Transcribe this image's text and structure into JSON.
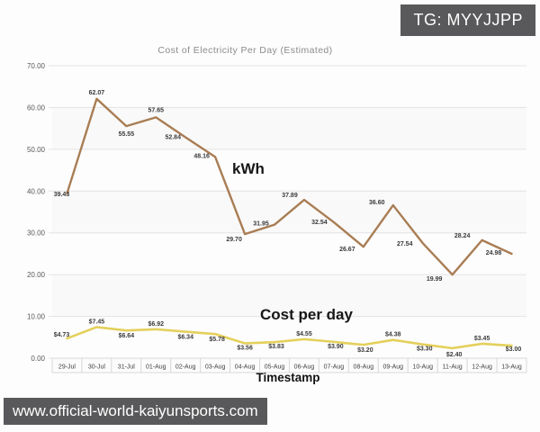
{
  "badge": {
    "text": "TG: MYYJJPP"
  },
  "watermark": {
    "text": "www.official-world-kaiyunsports.com"
  },
  "chart_data": {
    "type": "line",
    "title": "Cost of Electricity Per Day (Estimated)",
    "xlabel": "Timestamp",
    "ylabel": "",
    "ylim": [
      0,
      70
    ],
    "y_ticks": [
      "70.00",
      "60.00",
      "50.00",
      "40.00",
      "30.00",
      "20.00",
      "10.00",
      "0.00"
    ],
    "grid": true,
    "legend_position": "inline-annotations",
    "categories": [
      "29-Jul",
      "30-Jul",
      "31-Jul",
      "01-Aug",
      "02-Aug",
      "03-Aug",
      "04-Aug",
      "05-Aug",
      "06-Aug",
      "07-Aug",
      "08-Aug",
      "09-Aug",
      "10-Aug",
      "11-Aug",
      "12-Aug",
      "13-Aug"
    ],
    "series": [
      {
        "name": "kWh",
        "color": "#a97d54",
        "values": [
          39.43,
          62.07,
          55.55,
          57.65,
          52.84,
          48.16,
          29.7,
          31.95,
          37.89,
          32.54,
          26.67,
          36.6,
          27.54,
          19.99,
          28.24,
          24.98
        ],
        "labels": [
          "39.43",
          "62.07",
          "55.55",
          "57.65",
          "52.84",
          "48.16",
          "29.70",
          "31.95",
          "37.89",
          "32.54",
          "26.67",
          "36.60",
          "27.54",
          "19.99",
          "28.24",
          "24.98"
        ]
      },
      {
        "name": "Cost per day",
        "color": "#e4d05b",
        "values": [
          4.73,
          7.45,
          6.64,
          6.92,
          6.34,
          5.78,
          3.56,
          3.83,
          4.55,
          3.9,
          3.2,
          4.38,
          3.3,
          2.4,
          3.45,
          3.0
        ],
        "labels": [
          "$4.73",
          "$7.45",
          "$6.64",
          "$6.92",
          "$6.34",
          "$5.78",
          "$3.56",
          "$3.83",
          "$4.55",
          "$3.90",
          "$3.20",
          "$4.38",
          "$3.30",
          "$2.40",
          "$3.45",
          "$3.00"
        ]
      }
    ],
    "colors": {
      "grid": "#e3e3e3",
      "band": "#f9f9f9",
      "tick_text": "#595959",
      "data_label": "#3a3a3a",
      "axis_cell_border": "#d9d9d9",
      "axis_cell_bg": "#fcfcfc",
      "axis_cell_text": "#3f3f3f",
      "overlay_bg": "#59595b"
    }
  }
}
